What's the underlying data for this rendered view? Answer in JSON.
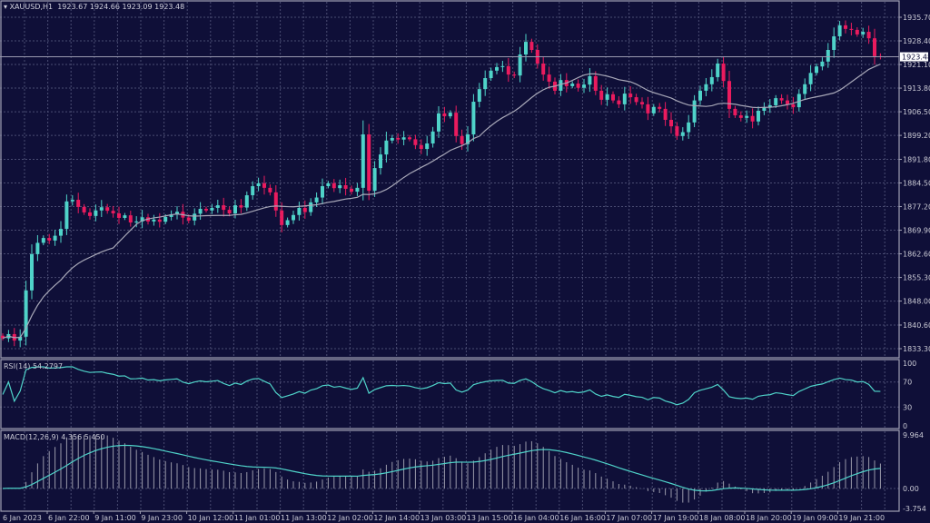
{
  "header": {
    "symbol": "XAUUSD,H1",
    "open": "1923.67",
    "high": "1924.66",
    "low": "1923.09",
    "close": "1923.48"
  },
  "colors": {
    "background": "#0f0f38",
    "grid": "#4a4c72",
    "bull": "#4fd3c9",
    "bear": "#ea1b5e",
    "ma": "#a8a8b8",
    "indicator": "#4fd3c9",
    "histogram": "#9a9aaa",
    "border": "#a0a0b4"
  },
  "chart_data": [
    {
      "type": "candlestick",
      "title": "XAUUSD,H1",
      "ylim": [
        1833.3,
        1935.7
      ],
      "y_ticks": [
        "1935.70",
        "1928.40",
        "1921.10",
        "1913.80",
        "1906.50",
        "1899.20",
        "1891.80",
        "1884.50",
        "1877.20",
        "1869.90",
        "1862.60",
        "1855.30",
        "1848.00",
        "1840.60",
        "1833.30"
      ],
      "x_ticks": [
        "6 Jan 2023",
        "6 Jan 22:00",
        "9 Jan 11:00",
        "9 Jan 23:00",
        "10 Jan 12:00",
        "11 Jan 01:00",
        "11 Jan 13:00",
        "12 Jan 02:00",
        "12 Jan 14:00",
        "13 Jan 03:00",
        "13 Jan 15:00",
        "16 Jan 04:00",
        "16 Jan 16:00",
        "17 Jan 07:00",
        "17 Jan 19:00",
        "18 Jan 08:00",
        "18 Jan 20:00",
        "19 Jan 09:00",
        "19 Jan 21:00"
      ],
      "current_price": "1923.48",
      "grid": true,
      "overlay": "moving average",
      "closes": [
        1836.5,
        1837.8,
        1835.8,
        1837.0,
        1851.3,
        1862.5,
        1866.0,
        1867.5,
        1866.7,
        1868.2,
        1870.3,
        1878.8,
        1879.3,
        1877.1,
        1875.4,
        1874.3,
        1876.0,
        1877.0,
        1875.9,
        1875.1,
        1873.7,
        1874.5,
        1872.3,
        1872.6,
        1873.9,
        1872.6,
        1873.2,
        1872.5,
        1874.0,
        1874.8,
        1875.6,
        1873.8,
        1872.9,
        1875.0,
        1876.5,
        1876.0,
        1876.8,
        1877.6,
        1876.2,
        1875.1,
        1877.6,
        1876.9,
        1880.7,
        1883.5,
        1884.4,
        1883.0,
        1881.6,
        1876.0,
        1871.5,
        1873.0,
        1874.6,
        1876.8,
        1875.5,
        1878.5,
        1880.0,
        1883.5,
        1884.4,
        1882.9,
        1883.8,
        1882.7,
        1881.8,
        1883.0,
        1899.5,
        1882.1,
        1889.1,
        1893.3,
        1897.6,
        1898.4,
        1897.9,
        1898.6,
        1898.0,
        1896.2,
        1895.0,
        1896.7,
        1900.4,
        1906.0,
        1905.1,
        1906.2,
        1899.0,
        1896.5,
        1899.5,
        1909.6,
        1913.5,
        1916.9,
        1919.2,
        1920.3,
        1920.6,
        1918.0,
        1917.7,
        1924.2,
        1928.1,
        1925.6,
        1921.4,
        1918.0,
        1915.8,
        1913.0,
        1916.3,
        1914.4,
        1915.2,
        1913.9,
        1914.9,
        1917.5,
        1913.0,
        1910.2,
        1911.9,
        1910.0,
        1908.8,
        1912.1,
        1911.0,
        1909.5,
        1908.8,
        1906.0,
        1908.0,
        1907.4,
        1904.0,
        1902.0,
        1899.0,
        1900.2,
        1903.2,
        1910.0,
        1913.0,
        1915.0,
        1917.2,
        1921.4,
        1916.0,
        1907.4,
        1905.4,
        1904.6,
        1905.2,
        1903.5,
        1906.8,
        1907.9,
        1908.5,
        1910.7,
        1910.0,
        1908.8,
        1907.9,
        1912.0,
        1915.0,
        1918.5,
        1920.5,
        1922.0,
        1925.6,
        1929.8,
        1933.2,
        1932.1,
        1931.8,
        1930.4,
        1931.2,
        1929.2,
        1923.67,
        1923.48
      ]
    },
    {
      "type": "line",
      "title": "RSI(14) 54.2797",
      "ylim": [
        0,
        100
      ],
      "y_ticks": [
        "100",
        "70",
        "30",
        "0"
      ],
      "levels": [
        70,
        30
      ]
    },
    {
      "type": "bar",
      "title": "MACD(12,26,9) 4.356 5.450",
      "ylim": [
        -3.754,
        9.964
      ],
      "y_ticks": [
        "9.964",
        "0.00",
        "-3.754"
      ]
    }
  ]
}
